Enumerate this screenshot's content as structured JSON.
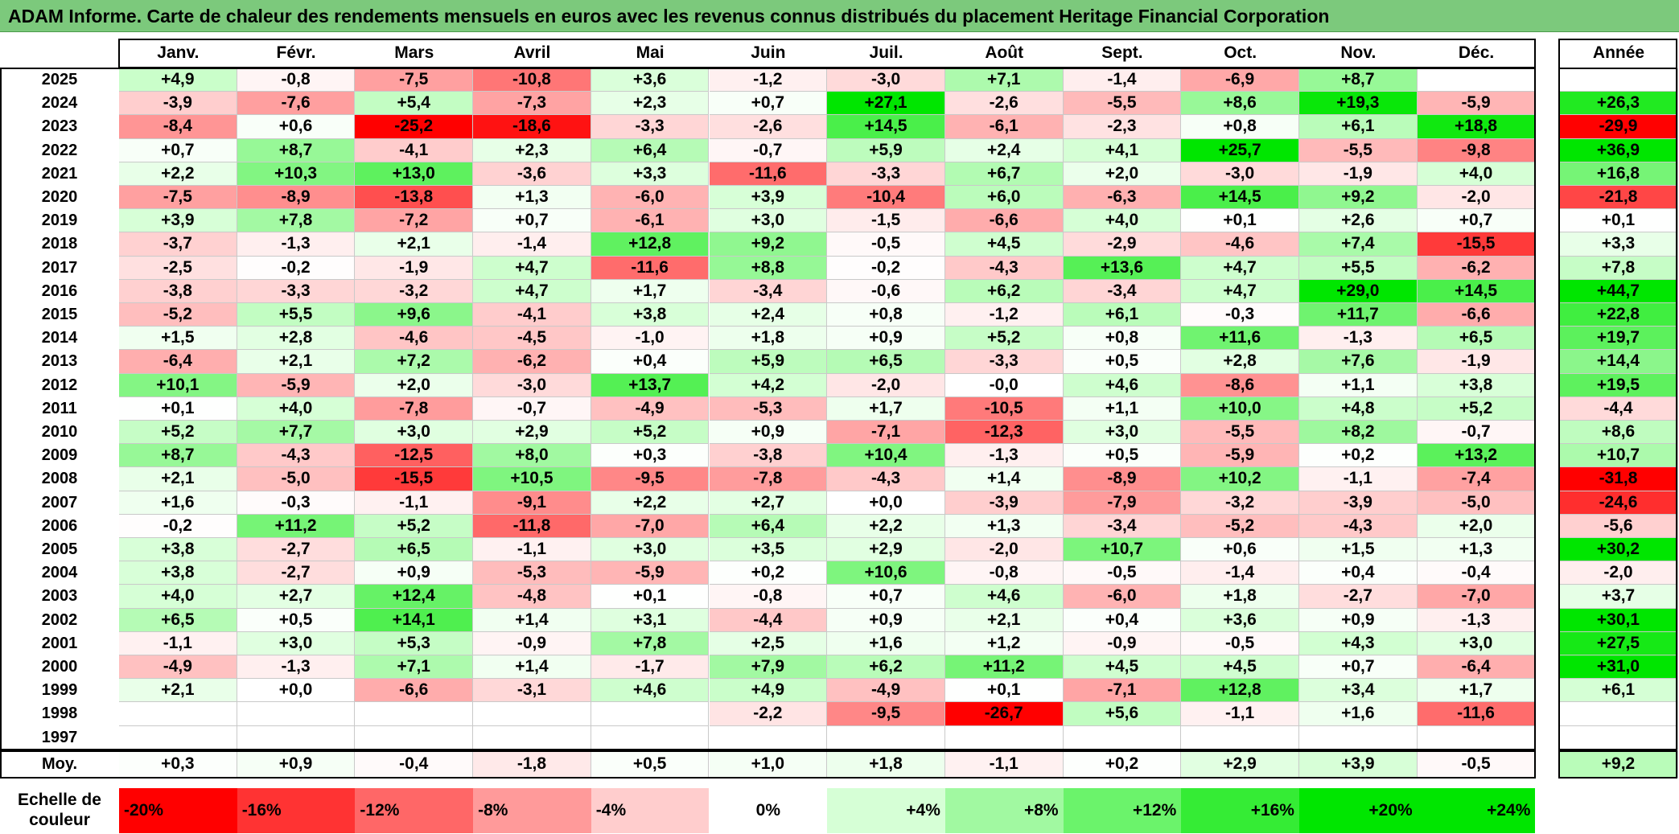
{
  "title": "ADAM Informe. Carte de chaleur des rendements mensuels en euros avec les revenus connus distribués du placement Heritage Financial Corporation",
  "chart_data": {
    "type": "heatmap",
    "months": [
      "Janv.",
      "Févr.",
      "Mars",
      "Avril",
      "Mai",
      "Juin",
      "Juil.",
      "Août",
      "Sept.",
      "Oct.",
      "Nov.",
      "Déc."
    ],
    "year_header": "Année",
    "rows": [
      {
        "year": "2025",
        "values": [
          "+4,9",
          "-0,8",
          "-7,5",
          "-10,8",
          "+3,6",
          "-1,2",
          "-3,0",
          "+7,1",
          "-1,4",
          "-6,9",
          "+8,7",
          ""
        ],
        "annual": ""
      },
      {
        "year": "2024",
        "values": [
          "-3,9",
          "-7,6",
          "+5,4",
          "-7,3",
          "+2,3",
          "+0,7",
          "+27,1",
          "-2,6",
          "-5,5",
          "+8,6",
          "+19,3",
          "-5,9"
        ],
        "annual": "+26,3"
      },
      {
        "year": "2023",
        "values": [
          "-8,4",
          "+0,6",
          "-25,2",
          "-18,6",
          "-3,3",
          "-2,6",
          "+14,5",
          "-6,1",
          "-2,3",
          "+0,8",
          "+6,1",
          "+18,8"
        ],
        "annual": "-29,9"
      },
      {
        "year": "2022",
        "values": [
          "+0,7",
          "+8,7",
          "-4,1",
          "+2,3",
          "+6,4",
          "-0,7",
          "+5,9",
          "+2,4",
          "+4,1",
          "+25,7",
          "-5,5",
          "-9,8"
        ],
        "annual": "+36,9"
      },
      {
        "year": "2021",
        "values": [
          "+2,2",
          "+10,3",
          "+13,0",
          "-3,6",
          "+3,3",
          "-11,6",
          "-3,3",
          "+6,7",
          "+2,0",
          "-3,0",
          "-1,9",
          "+4,0"
        ],
        "annual": "+16,8"
      },
      {
        "year": "2020",
        "values": [
          "-7,5",
          "-8,9",
          "-13,8",
          "+1,3",
          "-6,0",
          "+3,9",
          "-10,4",
          "+6,0",
          "-6,3",
          "+14,5",
          "+9,2",
          "-2,0"
        ],
        "annual": "-21,8"
      },
      {
        "year": "2019",
        "values": [
          "+3,9",
          "+7,8",
          "-7,2",
          "+0,7",
          "-6,1",
          "+3,0",
          "-1,5",
          "-6,6",
          "+4,0",
          "+0,1",
          "+2,6",
          "+0,7"
        ],
        "annual": "+0,1"
      },
      {
        "year": "2018",
        "values": [
          "-3,7",
          "-1,3",
          "+2,1",
          "-1,4",
          "+12,8",
          "+9,2",
          "-0,5",
          "+4,5",
          "-2,9",
          "-4,6",
          "+7,4",
          "-15,5"
        ],
        "annual": "+3,3"
      },
      {
        "year": "2017",
        "values": [
          "-2,5",
          "-0,2",
          "-1,9",
          "+4,7",
          "-11,6",
          "+8,8",
          "-0,2",
          "-4,3",
          "+13,6",
          "+4,7",
          "+5,5",
          "-6,2"
        ],
        "annual": "+7,8"
      },
      {
        "year": "2016",
        "values": [
          "-3,8",
          "-3,3",
          "-3,2",
          "+4,7",
          "+1,7",
          "-3,4",
          "-0,6",
          "+6,2",
          "-3,4",
          "+4,7",
          "+29,0",
          "+14,5"
        ],
        "annual": "+44,7"
      },
      {
        "year": "2015",
        "values": [
          "-5,2",
          "+5,5",
          "+9,6",
          "-4,1",
          "+3,8",
          "+2,4",
          "+0,8",
          "-1,2",
          "+6,1",
          "-0,3",
          "+11,7",
          "-6,6"
        ],
        "annual": "+22,8"
      },
      {
        "year": "2014",
        "values": [
          "+1,5",
          "+2,8",
          "-4,6",
          "-4,5",
          "-1,0",
          "+1,8",
          "+0,9",
          "+5,2",
          "+0,8",
          "+11,6",
          "-1,3",
          "+6,5"
        ],
        "annual": "+19,7"
      },
      {
        "year": "2013",
        "values": [
          "-6,4",
          "+2,1",
          "+7,2",
          "-6,2",
          "+0,4",
          "+5,9",
          "+6,5",
          "-3,3",
          "+0,5",
          "+2,8",
          "+7,6",
          "-1,9"
        ],
        "annual": "+14,4"
      },
      {
        "year": "2012",
        "values": [
          "+10,1",
          "-5,9",
          "+2,0",
          "-3,0",
          "+13,7",
          "+4,2",
          "-2,0",
          "-0,0",
          "+4,6",
          "-8,6",
          "+1,1",
          "+3,8"
        ],
        "annual": "+19,5"
      },
      {
        "year": "2011",
        "values": [
          "+0,1",
          "+4,0",
          "-7,8",
          "-0,7",
          "-4,9",
          "-5,3",
          "+1,7",
          "-10,5",
          "+1,1",
          "+10,0",
          "+4,8",
          "+5,2"
        ],
        "annual": "-4,4"
      },
      {
        "year": "2010",
        "values": [
          "+5,2",
          "+7,7",
          "+3,0",
          "+2,9",
          "+5,2",
          "+0,9",
          "-7,1",
          "-12,3",
          "+3,0",
          "-5,5",
          "+8,2",
          "-0,7"
        ],
        "annual": "+8,6"
      },
      {
        "year": "2009",
        "values": [
          "+8,7",
          "-4,3",
          "-12,5",
          "+8,0",
          "+0,3",
          "-3,8",
          "+10,4",
          "-1,3",
          "+0,5",
          "-5,9",
          "+0,2",
          "+13,2"
        ],
        "annual": "+10,7"
      },
      {
        "year": "2008",
        "values": [
          "+2,1",
          "-5,0",
          "-15,5",
          "+10,5",
          "-9,5",
          "-7,8",
          "-4,3",
          "+1,4",
          "-8,9",
          "+10,2",
          "-1,1",
          "-7,4"
        ],
        "annual": "-31,8"
      },
      {
        "year": "2007",
        "values": [
          "+1,6",
          "-0,3",
          "-1,1",
          "-9,1",
          "+2,2",
          "+2,7",
          "+0,0",
          "-3,9",
          "-7,9",
          "-3,2",
          "-3,9",
          "-5,0"
        ],
        "annual": "-24,6"
      },
      {
        "year": "2006",
        "values": [
          "-0,2",
          "+11,2",
          "+5,2",
          "-11,8",
          "-7,0",
          "+6,4",
          "+2,2",
          "+1,3",
          "-3,4",
          "-5,2",
          "-4,3",
          "+2,0"
        ],
        "annual": "-5,6"
      },
      {
        "year": "2005",
        "values": [
          "+3,8",
          "-2,7",
          "+6,5",
          "-1,1",
          "+3,0",
          "+3,5",
          "+2,9",
          "-2,0",
          "+10,7",
          "+0,6",
          "+1,5",
          "+1,3"
        ],
        "annual": "+30,2"
      },
      {
        "year": "2004",
        "values": [
          "+3,8",
          "-2,7",
          "+0,9",
          "-5,3",
          "-5,9",
          "+0,2",
          "+10,6",
          "-0,8",
          "-0,5",
          "-1,4",
          "+0,4",
          "-0,4"
        ],
        "annual": "-2,0"
      },
      {
        "year": "2003",
        "values": [
          "+4,0",
          "+2,7",
          "+12,4",
          "-4,8",
          "+0,1",
          "-0,8",
          "+0,7",
          "+4,6",
          "-6,0",
          "+1,8",
          "-2,7",
          "-7,0"
        ],
        "annual": "+3,7"
      },
      {
        "year": "2002",
        "values": [
          "+6,5",
          "+0,5",
          "+14,1",
          "+1,4",
          "+3,1",
          "-4,4",
          "+0,9",
          "+2,1",
          "+0,4",
          "+3,6",
          "+0,9",
          "-1,3"
        ],
        "annual": "+30,1"
      },
      {
        "year": "2001",
        "values": [
          "-1,1",
          "+3,0",
          "+5,3",
          "-0,9",
          "+7,8",
          "+2,5",
          "+1,6",
          "+1,2",
          "-0,9",
          "-0,5",
          "+4,3",
          "+3,0"
        ],
        "annual": "+27,5"
      },
      {
        "year": "2000",
        "values": [
          "-4,9",
          "-1,3",
          "+7,1",
          "+1,4",
          "-1,7",
          "+7,9",
          "+6,2",
          "+11,2",
          "+4,5",
          "+4,5",
          "+0,7",
          "-6,4"
        ],
        "annual": "+31,0"
      },
      {
        "year": "1999",
        "values": [
          "+2,1",
          "+0,0",
          "-6,6",
          "-3,1",
          "+4,6",
          "+4,9",
          "-4,9",
          "+0,1",
          "-7,1",
          "+12,8",
          "+3,4",
          "+1,7"
        ],
        "annual": "+6,1"
      },
      {
        "year": "1998",
        "values": [
          "",
          "",
          "",
          "",
          "",
          "-2,2",
          "-9,5",
          "-26,7",
          "+5,6",
          "-1,1",
          "+1,6",
          "-11,6"
        ],
        "annual": ""
      },
      {
        "year": "1997",
        "values": [
          "",
          "",
          "",
          "",
          "",
          "",
          "",
          "",
          "",
          "",
          "",
          ""
        ],
        "annual": ""
      }
    ],
    "average": {
      "label": "Moy.",
      "values": [
        "+0,3",
        "+0,9",
        "-0,4",
        "-1,8",
        "+0,5",
        "+1,0",
        "+1,8",
        "-1,1",
        "+0,2",
        "+2,9",
        "+3,9",
        "-0,5"
      ],
      "annual": "+9,2"
    },
    "color_scale": {
      "label_line1": "Echelle de",
      "label_line2": "couleur",
      "stops": [
        "-20%",
        "-16%",
        "-12%",
        "-8%",
        "-4%",
        "0%",
        "+4%",
        "+8%",
        "+12%",
        "+16%",
        "+20%",
        "+24%"
      ]
    }
  }
}
